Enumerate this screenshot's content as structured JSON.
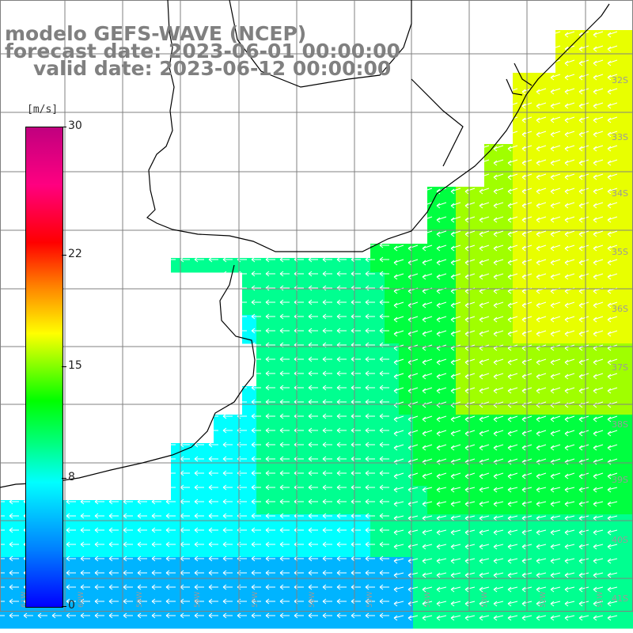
{
  "title": {
    "line1": "modelo GEFS-WAVE (NCEP)",
    "line2": "forecast date: 2023-06-01 00:00:00",
    "line3": "valid date: 2023-06-12 00:00:00"
  },
  "legend": {
    "unit": "[m/s]",
    "ticks": [
      "30",
      "22",
      "15",
      "8",
      "0"
    ],
    "min": 0,
    "max": 30
  },
  "lat_labels": [
    "32S",
    "33S",
    "34S",
    "35S",
    "36S",
    "37S",
    "38S",
    "39S",
    "40S",
    "41S"
  ],
  "lon_labels": [
    "61W",
    "60W",
    "59W",
    "58W",
    "57W",
    "56W",
    "55W",
    "54W",
    "53W",
    "52W",
    "51W"
  ],
  "colors": {
    "cyan": "#00ffff",
    "light_blue": "#00b4ff",
    "blue": "#0080ff",
    "aqua_green": "#00ff90",
    "green": "#00ff40",
    "yellow_green": "#a0ff00",
    "yellow": "#e8ff00",
    "coast": "#000000",
    "grid": "#808080"
  }
}
